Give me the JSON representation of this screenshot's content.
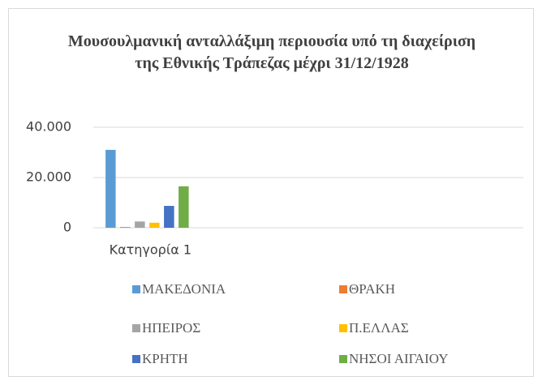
{
  "chart_data": {
    "type": "bar",
    "title": "Μουσουλμανική ανταλλάξιμη περιουσία υπό τη διαχείριση της Εθνικής Τράπεζας μέχρι 31/12/1928",
    "categories": [
      "Κατηγορία 1",
      null,
      null
    ],
    "series": [
      {
        "name": "ΜΑΚΕΔΟΝΙΑ",
        "color": "#5b9bd5",
        "values": [
          31000,
          null,
          null
        ]
      },
      {
        "name": "ΘΡΑΚΗ",
        "color": "#ed7d31",
        "values": [
          300,
          null,
          null
        ]
      },
      {
        "name": "ΗΠΕΙΡΟΣ",
        "color": "#a5a5a5",
        "values": [
          2500,
          null,
          null
        ]
      },
      {
        "name": "Π.ΕΛΛΑΣ",
        "color": "#ffc000",
        "values": [
          2000,
          null,
          null
        ]
      },
      {
        "name": "ΚΡΗΤΗ",
        "color": "#4472c4",
        "values": [
          8700,
          null,
          null
        ]
      },
      {
        "name": "ΝΗΣΟΙ ΑΙΓΑΙΟΥ",
        "color": "#70ad47",
        "values": [
          16500,
          null,
          null
        ]
      }
    ],
    "ylim": [
      0,
      40000
    ],
    "yticks": [
      0,
      {
        "value": 20000,
        "label": "20.000"
      },
      {
        "value": 40000,
        "label": "40.000"
      }
    ],
    "grid": true,
    "legend": "bottom"
  }
}
